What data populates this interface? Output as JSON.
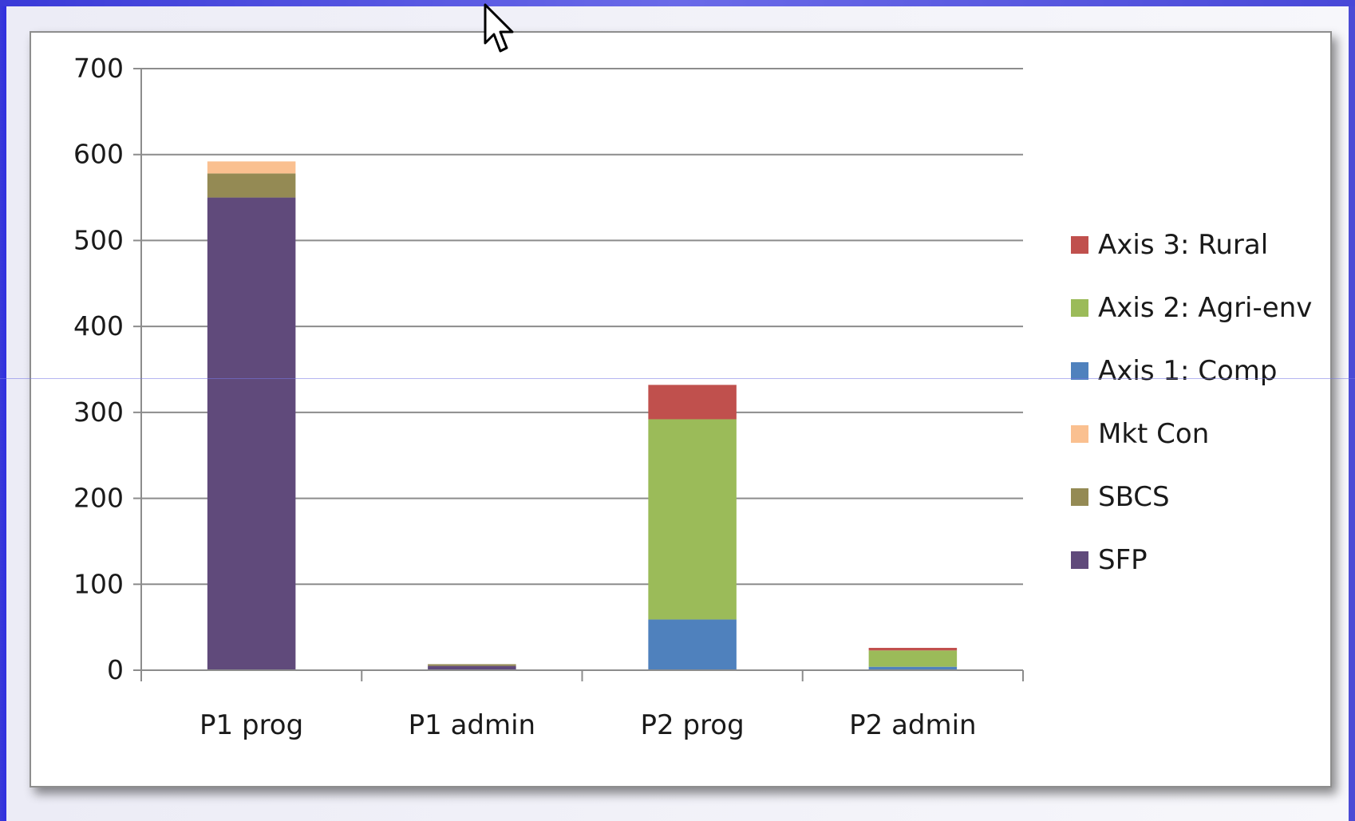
{
  "chart_data": {
    "type": "bar",
    "stacked": true,
    "title": "",
    "xlabel": "",
    "ylabel": "",
    "ylim": [
      0,
      700
    ],
    "y_ticks": [
      0,
      100,
      200,
      300,
      400,
      500,
      600,
      700
    ],
    "grid": true,
    "legend_position": "right",
    "categories": [
      "P1 prog",
      "P1 admin",
      "P2 prog",
      "P2 admin"
    ],
    "series": [
      {
        "name": "SFP",
        "color": "#604A7B",
        "values": [
          550,
          5,
          0,
          0
        ]
      },
      {
        "name": "SBCS",
        "color": "#948A54",
        "values": [
          28,
          2,
          0,
          0
        ]
      },
      {
        "name": "Mkt Con",
        "color": "#FAC090",
        "values": [
          14,
          0,
          0,
          0
        ]
      },
      {
        "name": "Axis 1: Comp",
        "color": "#4F81BD",
        "values": [
          0,
          0,
          59,
          4
        ]
      },
      {
        "name": "Axis 2: Agri-env",
        "color": "#9BBB59",
        "values": [
          0,
          0,
          233,
          19
        ]
      },
      {
        "name": "Axis 3: Rural",
        "color": "#C0504D",
        "values": [
          0,
          0,
          40,
          3
        ]
      }
    ]
  }
}
